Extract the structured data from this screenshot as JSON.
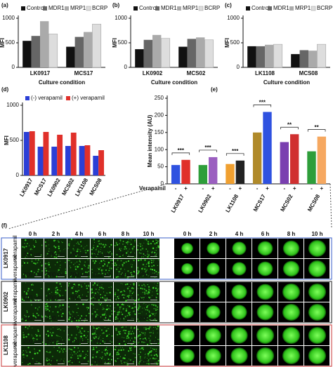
{
  "chart_data": [
    {
      "type": "bar",
      "panel": "(a)",
      "ylabel": "MFI",
      "xlabel": "Culture condition",
      "categories": [
        "LK0917",
        "MCS17"
      ],
      "series": [
        {
          "name": "Control",
          "color": "#111111",
          "values": [
            540,
            420
          ]
        },
        {
          "name": "MDR1",
          "color": "#666666",
          "values": [
            640,
            620
          ]
        },
        {
          "name": "MRP1",
          "color": "#aaaaaa",
          "values": [
            940,
            720
          ]
        },
        {
          "name": "BCRP",
          "color": "#dddddd",
          "values": [
            680,
            880
          ]
        }
      ],
      "ylim": [
        0,
        1000
      ],
      "yticks": [
        0,
        500,
        1000
      ],
      "legend": "top"
    },
    {
      "type": "bar",
      "panel": "(b)",
      "ylabel": "MFI",
      "xlabel": "Culture condition",
      "categories": [
        "LK0902",
        "MCS02"
      ],
      "series": [
        {
          "name": "Control",
          "color": "#111111",
          "values": [
            370,
            420
          ]
        },
        {
          "name": "MDR1",
          "color": "#666666",
          "values": [
            560,
            580
          ]
        },
        {
          "name": "MRP1",
          "color": "#aaaaaa",
          "values": [
            660,
            610
          ]
        },
        {
          "name": "BCRP",
          "color": "#dddddd",
          "values": [
            590,
            560
          ]
        }
      ],
      "ylim": [
        0,
        1000
      ],
      "yticks": [
        0,
        500,
        1000
      ],
      "legend": "top"
    },
    {
      "type": "bar",
      "panel": "(c)",
      "ylabel": "MFI",
      "xlabel": "Culture condition",
      "categories": [
        "LK1108",
        "MCS08"
      ],
      "series": [
        {
          "name": "Control",
          "color": "#111111",
          "values": [
            430,
            270
          ]
        },
        {
          "name": "MDR1",
          "color": "#666666",
          "values": [
            430,
            350
          ]
        },
        {
          "name": "MRP1",
          "color": "#aaaaaa",
          "values": [
            460,
            340
          ]
        },
        {
          "name": "BCRP",
          "color": "#dddddd",
          "values": [
            470,
            470
          ]
        }
      ],
      "ylim": [
        0,
        1000
      ],
      "yticks": [
        0,
        500,
        1000
      ],
      "legend": "top"
    },
    {
      "type": "bar",
      "panel": "(d)",
      "ylabel": "MFI",
      "categories": [
        "LK0917",
        "MCS17",
        "LK0902",
        "MCS02",
        "LK1108",
        "MCS08"
      ],
      "series": [
        {
          "name": "(-) verapamil",
          "color": "#2b3fd6",
          "values": [
            620,
            410,
            410,
            420,
            420,
            280
          ]
        },
        {
          "name": "(+) verapamil",
          "color": "#e0302a",
          "values": [
            630,
            620,
            580,
            610,
            430,
            360
          ]
        }
      ],
      "ylim": [
        0,
        1000
      ],
      "yticks": [
        0,
        500,
        1000
      ],
      "legend": "top"
    },
    {
      "type": "pairbar",
      "panel": "(e)",
      "ylabel": "Mean intensity (AU)",
      "xlabel": "Verapamil",
      "categories": [
        "LK0917",
        "LK0902",
        "LK1108",
        "MCS17",
        "MCS02",
        "MCS08"
      ],
      "series": [
        {
          "name": "-",
          "colors": [
            "#2f52e0",
            "#2e9e3a",
            "#f0a030",
            "#b08a2a",
            "#7a3fb0",
            "#2e9e3a"
          ],
          "values": [
            55,
            55,
            58,
            150,
            122,
            95
          ]
        },
        {
          "name": "+",
          "colors": [
            "#e0302a",
            "#9b5fc0",
            "#222222",
            "#2f52e0",
            "#d03030",
            "#f6a860"
          ],
          "values": [
            70,
            78,
            68,
            210,
            145,
            138
          ]
        }
      ],
      "significance": [
        "***",
        "***",
        "***",
        "***",
        "**",
        "**"
      ],
      "ylim": [
        0,
        250
      ],
      "yticks": [
        0,
        50,
        100,
        150,
        200,
        250
      ]
    }
  ],
  "panel_f": {
    "panel": "(f)",
    "times": [
      "0 h",
      "2 h",
      "4 h",
      "6 h",
      "8 h",
      "10 h"
    ],
    "groups": [
      {
        "name": "LK0917",
        "color": "#3a5fc8"
      },
      {
        "name": "LK0902",
        "color": "#222222"
      },
      {
        "name": "LK1108",
        "color": "#c83a3a"
      }
    ],
    "conditions": [
      "-verapamil",
      "+verapamil"
    ],
    "scale_bar": "200 µm"
  }
}
